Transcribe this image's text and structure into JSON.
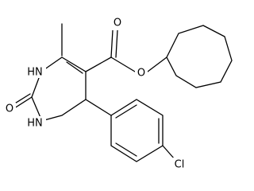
{
  "atoms": [
    {
      "label": "O"
    },
    {
      "label": "O"
    },
    {
      "label": "HN"
    },
    {
      "label": "HN"
    },
    {
      "label": "O"
    },
    {
      "label": "Cl"
    }
  ]
}
